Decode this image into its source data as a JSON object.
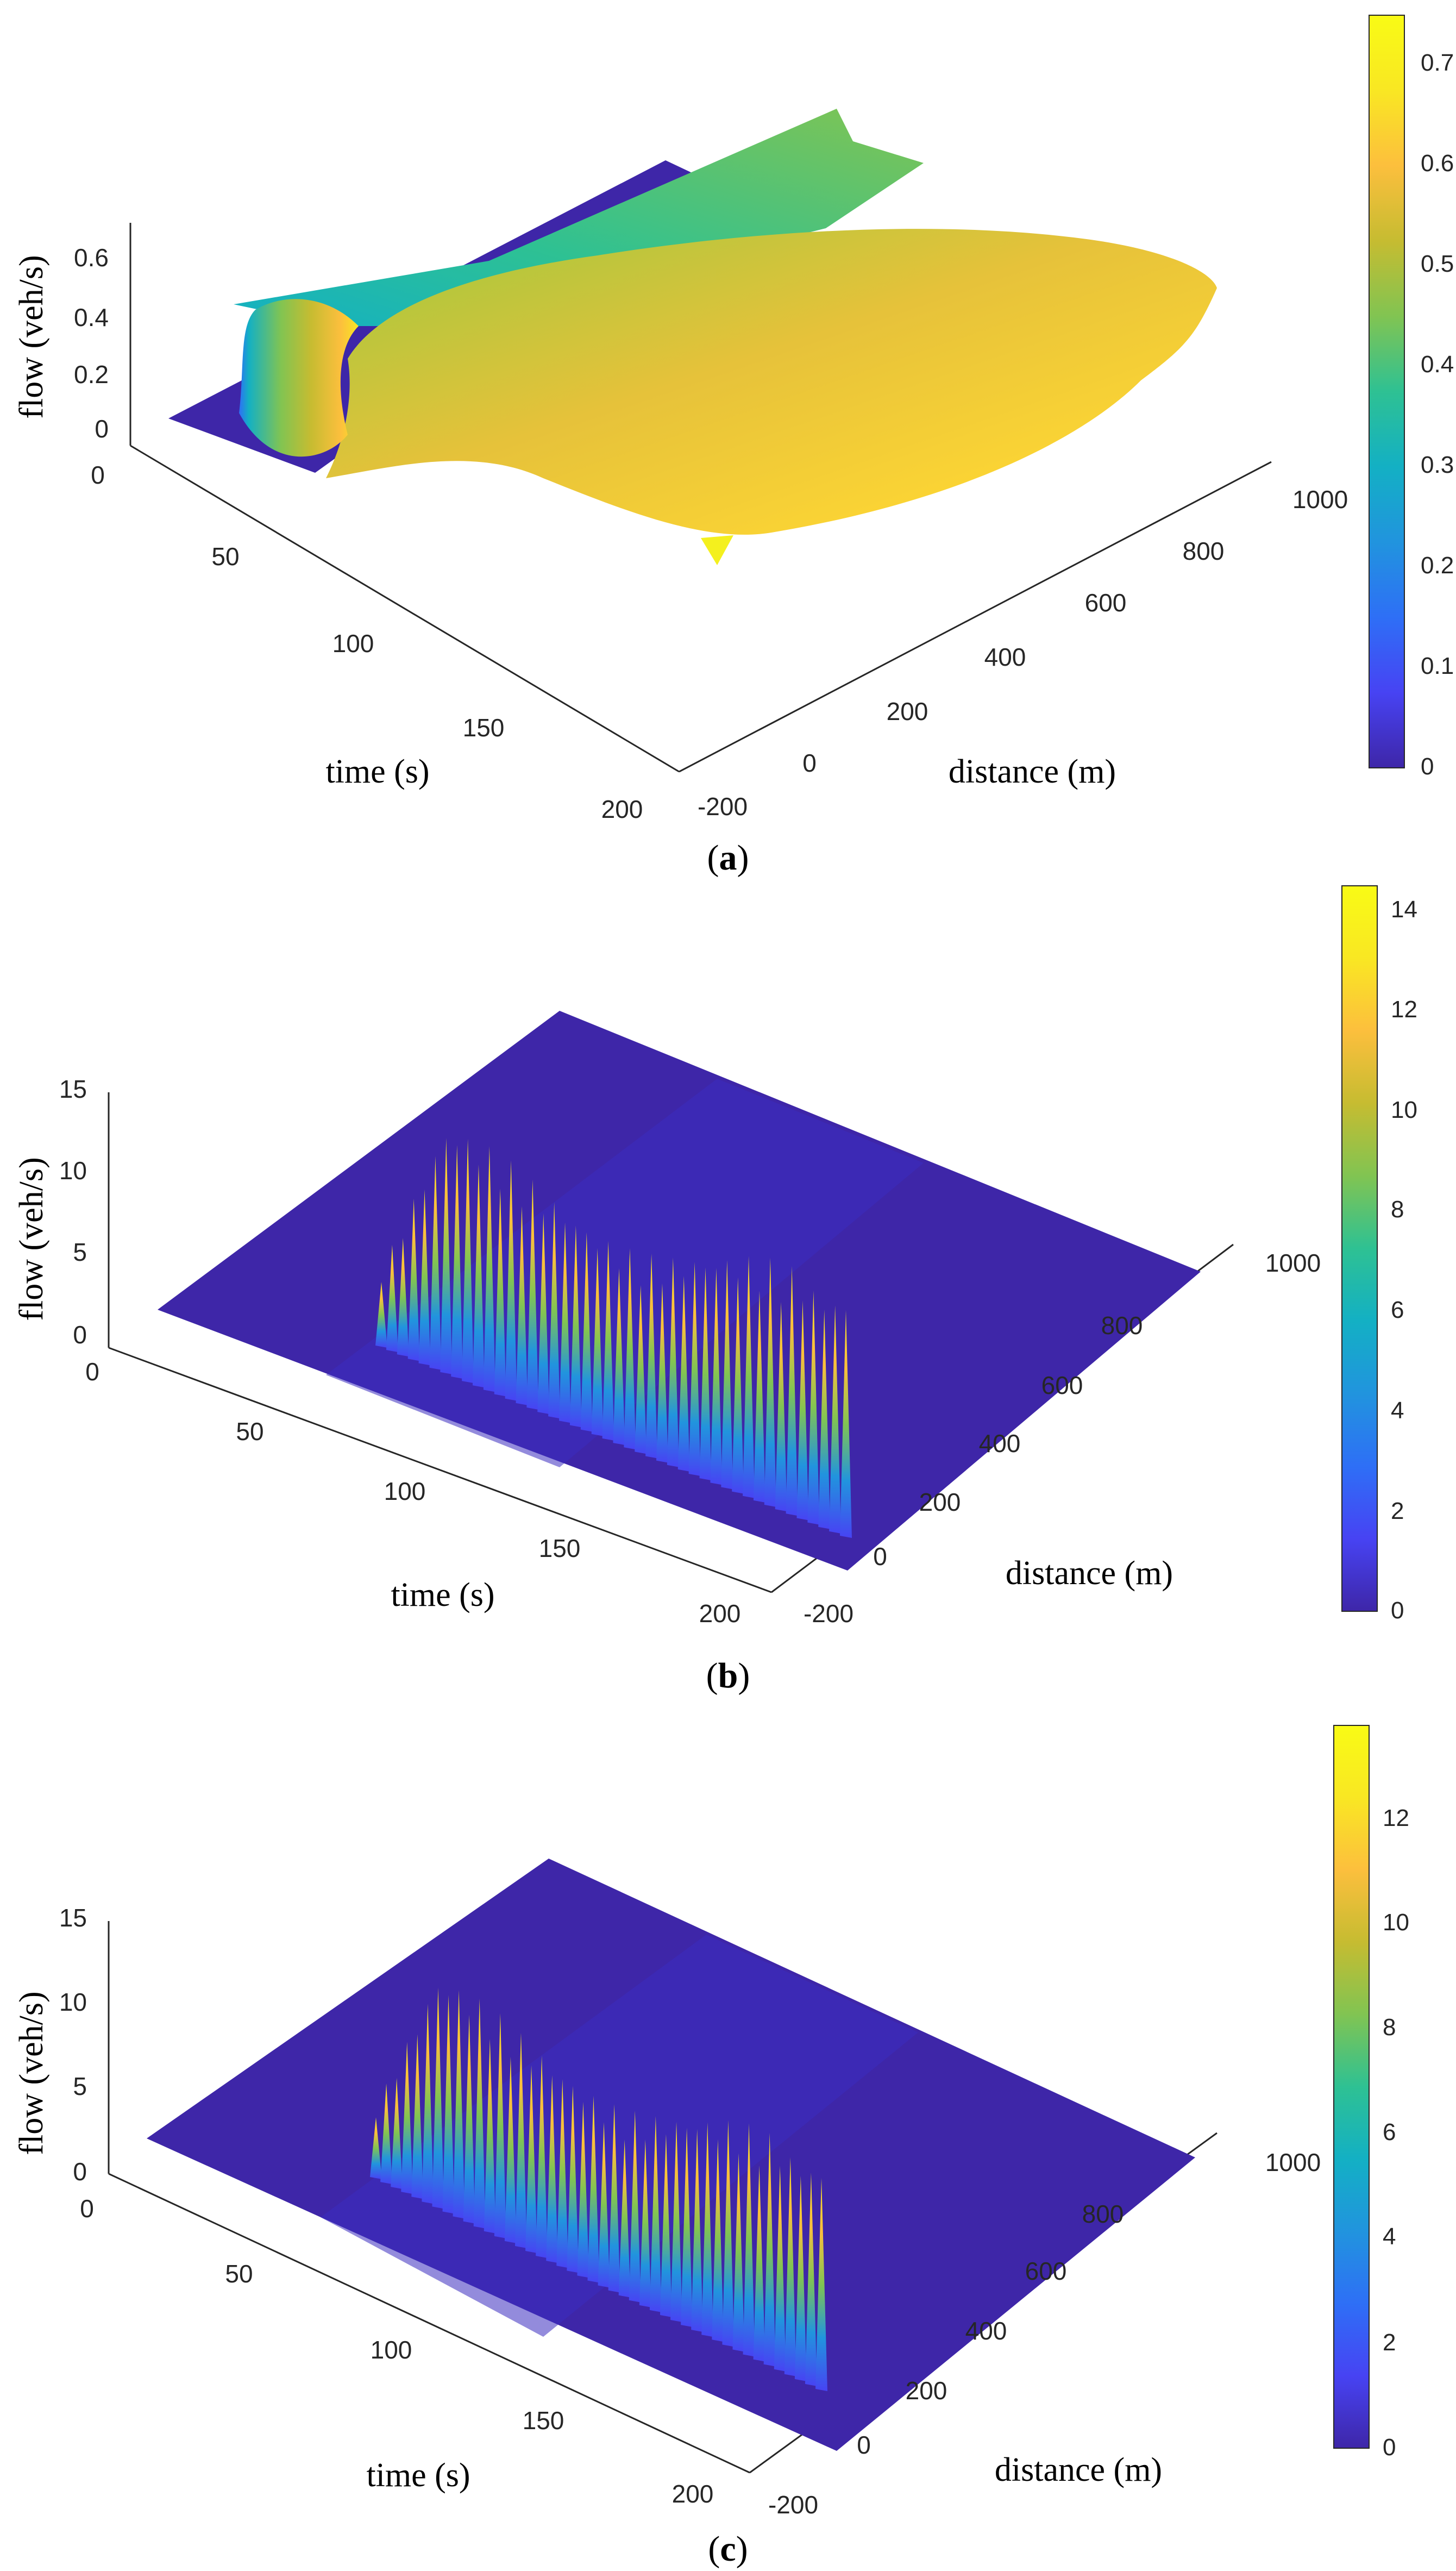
{
  "chart_data": [
    {
      "type": "surface3d",
      "panel": "a",
      "caption_letter": "a",
      "zlabel": "flow (veh/s)",
      "xlabel": "time (s)",
      "ylabel": "distance (m)",
      "z_ticks": [
        "0",
        "0.2",
        "0.4",
        "0.6"
      ],
      "time_ticks": [
        "0",
        "50",
        "100",
        "150",
        "200"
      ],
      "distance_ticks": [
        "-200",
        "0",
        "200",
        "400",
        "600",
        "800",
        "1000"
      ],
      "time_range": [
        0,
        200
      ],
      "distance_range": [
        -200,
        1000
      ],
      "zlim": [
        0,
        0.7
      ],
      "colorbar": {
        "min": 0,
        "max": 0.75,
        "ticks": [
          "0",
          "0.1",
          "0.2",
          "0.3",
          "0.4",
          "0.5",
          "0.6",
          "0.7"
        ]
      },
      "peak_flow": 0.72
    },
    {
      "type": "surface3d",
      "panel": "b",
      "caption_letter": "b",
      "zlabel": "flow (veh/s)",
      "xlabel": "time (s)",
      "ylabel": "distance (m)",
      "z_ticks": [
        "0",
        "5",
        "10",
        "15"
      ],
      "time_ticks": [
        "0",
        "50",
        "100",
        "150",
        "200"
      ],
      "distance_ticks": [
        "-200",
        "0",
        "200",
        "400",
        "600",
        "800",
        "1000"
      ],
      "time_range": [
        0,
        200
      ],
      "distance_range": [
        -200,
        1000
      ],
      "zlim": [
        0,
        15
      ],
      "colorbar": {
        "min": 0,
        "max": 14.5,
        "ticks": [
          "0",
          "2",
          "4",
          "6",
          "8",
          "10",
          "12",
          "14"
        ]
      },
      "peak_flow": 14.4
    },
    {
      "type": "surface3d",
      "panel": "c",
      "caption_letter": "c",
      "zlabel": "flow (veh/s)",
      "xlabel": "time (s)",
      "ylabel": "distance (m)",
      "z_ticks": [
        "0",
        "5",
        "10",
        "15"
      ],
      "time_ticks": [
        "0",
        "50",
        "100",
        "150",
        "200"
      ],
      "distance_ticks": [
        "-200",
        "0",
        "200",
        "400",
        "600",
        "800",
        "1000"
      ],
      "time_range": [
        0,
        200
      ],
      "distance_range": [
        -200,
        1000
      ],
      "zlim": [
        0,
        15
      ],
      "colorbar": {
        "min": 0,
        "max": 13.7,
        "ticks": [
          "0",
          "2",
          "4",
          "6",
          "8",
          "10",
          "12"
        ]
      },
      "peak_flow": 13.6
    }
  ],
  "palette": {
    "parula": [
      "#3e26a8",
      "#4743f3",
      "#2e6ff6",
      "#2194de",
      "#13b0c4",
      "#2ec193",
      "#81c452",
      "#c6bc31",
      "#fcbf3d",
      "#f9e723",
      "#f9fb15"
    ],
    "axis": "#262626"
  }
}
